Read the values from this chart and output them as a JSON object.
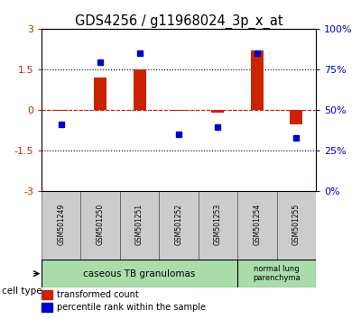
{
  "title": "GDS4256 / g11968024_3p_x_at",
  "samples": [
    "GSM501249",
    "GSM501250",
    "GSM501251",
    "GSM501252",
    "GSM501253",
    "GSM501254",
    "GSM501255"
  ],
  "red_values": [
    -0.05,
    1.2,
    1.5,
    -0.05,
    -0.1,
    2.2,
    -0.55
  ],
  "blue_values": [
    -0.55,
    1.75,
    2.1,
    -0.9,
    -0.65,
    2.1,
    -1.05
  ],
  "ylim": [
    -3,
    3
  ],
  "yticks_left": [
    -3,
    -1.5,
    0,
    1.5,
    3
  ],
  "right_tick_positions": [
    -3,
    -1.5,
    0,
    1.5,
    3
  ],
  "right_tick_labels": [
    "0%",
    "25%",
    "50%",
    "75%",
    "100%"
  ],
  "dotted_lines": [
    -1.5,
    0,
    1.5
  ],
  "legend_red_label": "transformed count",
  "legend_blue_label": "percentile rank within the sample",
  "red_color": "#cc2200",
  "blue_color": "#0000cc",
  "title_fontsize": 10.5
}
